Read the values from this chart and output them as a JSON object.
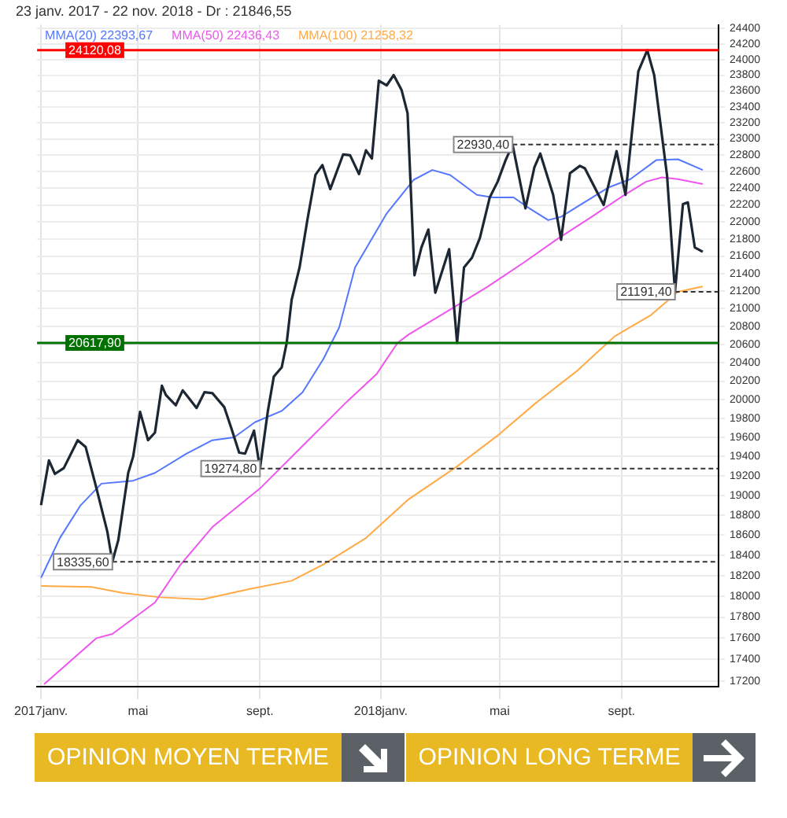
{
  "chart_data": {
    "type": "line",
    "title": "23 janv. 2017 - 22 nov. 2018 - Dr : 21846,55",
    "series": [
      {
        "name": null,
        "color": "#1c2733",
        "x": [
          "2017-01-23",
          "2017-01-31",
          "2017-02-06",
          "2017-02-15",
          "2017-03-01",
          "2017-03-09",
          "2017-03-20",
          "2017-03-31",
          "2017-04-05",
          "2017-04-11",
          "2017-04-21",
          "2017-04-26",
          "2017-05-03",
          "2017-05-11",
          "2017-05-18",
          "2017-05-25",
          "2017-05-29",
          "2017-06-08",
          "2017-06-15",
          "2017-06-21",
          "2017-06-29",
          "2017-07-07",
          "2017-07-15",
          "2017-07-27",
          "2017-08-03",
          "2017-08-11",
          "2017-08-17",
          "2017-08-26",
          "2017-09-01",
          "2017-09-09",
          "2017-09-15",
          "2017-09-23",
          "2017-09-28",
          "2017-10-03",
          "2017-10-11",
          "2017-10-19",
          "2017-10-27",
          "2017-11-03",
          "2017-11-11",
          "2017-11-24",
          "2017-12-01",
          "2017-12-10",
          "2017-12-17",
          "2017-12-23",
          "2017-12-30",
          "2018-01-07",
          "2018-01-14",
          "2018-01-22",
          "2018-01-28",
          "2018-02-04",
          "2018-02-11",
          "2018-02-18",
          "2018-02-25",
          "2018-03-11",
          "2018-03-19",
          "2018-03-26",
          "2018-04-03",
          "2018-04-11",
          "2018-04-21",
          "2018-04-29",
          "2018-05-07",
          "2018-05-14",
          "2018-05-27",
          "2018-06-05",
          "2018-06-11",
          "2018-06-24",
          "2018-07-02",
          "2018-07-11",
          "2018-07-21",
          "2018-07-26",
          "2018-08-14",
          "2018-08-27",
          "2018-09-05",
          "2018-09-18",
          "2018-09-27",
          "2018-10-04",
          "2018-10-17",
          "2018-10-25",
          "2018-11-02",
          "2018-11-07",
          "2018-11-14",
          "2018-11-22"
        ],
        "values": [
          18900,
          19360,
          19220,
          19280,
          19570,
          19500,
          19070,
          18630,
          18335.6,
          18550,
          19230,
          19400,
          19870,
          19570,
          19650,
          20150,
          20050,
          19940,
          20100,
          20020,
          19910,
          20080,
          20070,
          19920,
          19700,
          19440,
          19430,
          19670,
          19274.8,
          19880,
          20250,
          20350,
          20620,
          21100,
          21470,
          22030,
          22560,
          22680,
          22390,
          22810,
          22800,
          22570,
          22860,
          22760,
          23730,
          23670,
          23800,
          23610,
          23320,
          21380,
          21700,
          21910,
          21180,
          21680,
          20617.9,
          21470,
          21580,
          21810,
          22290,
          22480,
          22740,
          22930.4,
          22160,
          22650,
          22820,
          22320,
          21790,
          22580,
          22670,
          22640,
          22200,
          22850,
          22320,
          23850,
          24120.08,
          23800,
          22550,
          21191.4,
          22210,
          22230,
          21700,
          21650
        ]
      },
      {
        "name": "MMA(20) 22393,67",
        "color": "#5577ff",
        "x": [
          "2017-01-23",
          "2017-02-11",
          "2017-03-04",
          "2017-03-25",
          "2017-04-26",
          "2017-05-18",
          "2017-06-19",
          "2017-07-15",
          "2017-08-06",
          "2017-08-27",
          "2017-09-23",
          "2017-10-14",
          "2017-11-04",
          "2017-11-20",
          "2017-12-06",
          "2018-01-07",
          "2018-02-03",
          "2018-02-22",
          "2018-03-12",
          "2018-04-08",
          "2018-04-24",
          "2018-05-15",
          "2018-05-31",
          "2018-06-19",
          "2018-07-02",
          "2018-07-24",
          "2018-08-19",
          "2018-09-10",
          "2018-10-06",
          "2018-10-28",
          "2018-11-22"
        ],
        "values": [
          18180,
          18570,
          18900,
          19120,
          19150,
          19230,
          19430,
          19570,
          19600,
          19760,
          19880,
          20080,
          20440,
          20790,
          21470,
          22100,
          22500,
          22620,
          22560,
          22320,
          22290,
          22290,
          22160,
          22020,
          22060,
          22220,
          22410,
          22510,
          22740,
          22750,
          22620
        ]
      },
      {
        "name": "MMA(50) 22436,43",
        "color": "#ee55ee",
        "x": [
          "2017-01-26",
          "2017-03-20",
          "2017-04-05",
          "2017-05-18",
          "2017-06-13",
          "2017-07-15",
          "2017-09-01",
          "2017-10-14",
          "2017-11-26",
          "2017-12-28",
          "2018-01-18",
          "2018-01-29",
          "2018-03-12",
          "2018-04-19",
          "2018-05-26",
          "2018-06-27",
          "2018-07-29",
          "2018-09-04",
          "2018-09-26",
          "2018-10-12",
          "2018-10-28",
          "2018-11-22"
        ],
        "values": [
          17170,
          17600,
          17640,
          17940,
          18310,
          18680,
          19070,
          19510,
          19960,
          20280,
          20620,
          20710,
          20990,
          21250,
          21530,
          21790,
          22030,
          22320,
          22480,
          22530,
          22510,
          22450
        ]
      },
      {
        "name": "MMA(100) 21258,32",
        "color": "#ffaa44",
        "x": [
          "2017-01-23",
          "2017-03-15",
          "2017-04-16",
          "2017-05-23",
          "2017-07-05",
          "2017-08-22",
          "2017-10-03",
          "2017-11-04",
          "2017-12-17",
          "2018-01-29",
          "2018-03-18",
          "2018-04-29",
          "2018-06-06",
          "2018-07-18",
          "2018-08-25",
          "2018-10-01",
          "2018-10-28",
          "2018-11-22"
        ],
        "values": [
          18100,
          18090,
          18030,
          17990,
          17970,
          18070,
          18150,
          18310,
          18570,
          18960,
          19290,
          19620,
          19960,
          20310,
          20690,
          20930,
          21190,
          21250
        ]
      }
    ],
    "xlim": [
      "2017-01-19",
      "2018-12-08"
    ],
    "xticks": [
      {
        "value": "2017-01-23",
        "label": "2017janv."
      },
      {
        "value": "2017-05-01",
        "label": "mai"
      },
      {
        "value": "2017-09-01",
        "label": "sept."
      },
      {
        "value": "2018-01-01",
        "label": "2018janv."
      },
      {
        "value": "2018-05-01",
        "label": "mai"
      },
      {
        "value": "2018-09-01",
        "label": "sept."
      }
    ],
    "ylim": [
      17150,
      24450
    ],
    "yticks": [
      17200,
      17400,
      17600,
      17800,
      18000,
      18200,
      18400,
      18600,
      18800,
      19000,
      19200,
      19400,
      19600,
      19800,
      20000,
      20200,
      20400,
      20600,
      20800,
      21000,
      21200,
      21400,
      21600,
      21800,
      22000,
      22200,
      22400,
      22600,
      22800,
      23000,
      23200,
      23400,
      23600,
      23800,
      24000,
      24200,
      24400
    ],
    "log": "y",
    "grid": true,
    "legend": "top left",
    "marker": "none",
    "line_style": "solid",
    "ref_lines": [
      {
        "axis": "y",
        "value": 24120.08,
        "label": "24120,08",
        "color": "#ff0000",
        "line_style": "solid"
      },
      {
        "axis": "y",
        "value": 20617.9,
        "label": "20617,90",
        "color": "#007000",
        "line_style": "solid"
      },
      {
        "axis": "y",
        "value": 22930.4,
        "label": "22930,40",
        "color": "#333333",
        "line_style": "dashed"
      },
      {
        "axis": "y",
        "value": 21191.4,
        "label": "21191,40",
        "color": "#333333",
        "line_style": "dashed"
      },
      {
        "axis": "y",
        "value": 19274.8,
        "label": "19274,80",
        "color": "#333333",
        "line_style": "dashed"
      },
      {
        "axis": "y",
        "value": 18335.6,
        "label": "18335,60",
        "color": "#333333",
        "line_style": "dashed"
      }
    ],
    "annotations": [
      "OPINION MOYEN TERME",
      "OPINION LONG TERME"
    ]
  }
}
